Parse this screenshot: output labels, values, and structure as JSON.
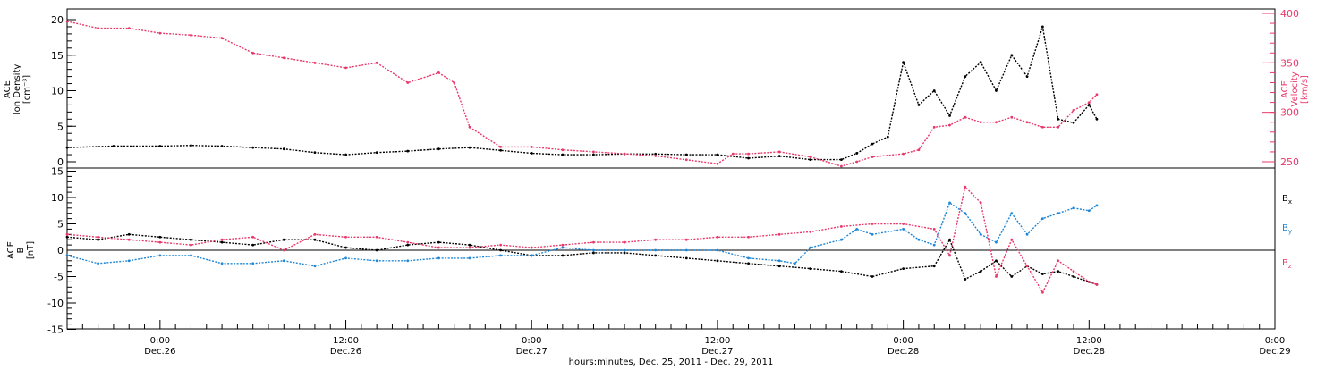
{
  "chart_data": [
    {
      "type": "line",
      "panel": "top",
      "ylabel_left_lines": [
        "ACE",
        "Ion Density",
        "[cm⁻³]"
      ],
      "ylabel_right_lines": [
        "ACE",
        "Velocity",
        "[km/s]"
      ],
      "x_range_hours": [
        -6,
        72
      ],
      "ylim_left": [
        0,
        20.5
      ],
      "left_ticks": [
        0,
        5,
        10,
        15,
        20
      ],
      "ylim_right": [
        215,
        410
      ],
      "right_ticks": [
        250,
        300,
        350,
        400
      ],
      "series": [
        {
          "name": "",
          "axis": "left",
          "color": "#000000",
          "x": [
            -6,
            -3,
            0,
            2,
            4,
            6,
            8,
            10,
            12,
            14,
            16,
            18,
            20,
            22,
            24,
            26,
            28,
            30,
            32,
            34,
            36,
            38,
            40,
            42,
            44,
            45,
            46,
            47,
            48,
            49,
            50,
            51,
            52,
            53,
            54,
            55,
            56,
            57,
            58,
            59,
            60,
            60.5
          ],
          "y": [
            2.0,
            2.2,
            2.2,
            2.3,
            2.2,
            2.0,
            1.8,
            1.3,
            1.0,
            1.3,
            1.5,
            1.8,
            2.0,
            1.6,
            1.2,
            1.0,
            1.0,
            1.1,
            1.1,
            1.0,
            1.0,
            0.5,
            0.8,
            0.3,
            0.3,
            1.2,
            2.5,
            3.5,
            14.0,
            8.0,
            10.0,
            6.5,
            12.0,
            14.0,
            10.0,
            15.0,
            12.0,
            19.0,
            6.0,
            5.5,
            8.0,
            6.0
          ]
        },
        {
          "name": "",
          "axis": "right",
          "color": "#e8386a",
          "x": [
            -6,
            -4,
            -2,
            0,
            2,
            4,
            6,
            8,
            10,
            12,
            14,
            16,
            18,
            19,
            20,
            22,
            24,
            26,
            28,
            30,
            32,
            34,
            36,
            37,
            38,
            40,
            42,
            44,
            45,
            46,
            48,
            49,
            50,
            51,
            52,
            53,
            54,
            55,
            56,
            57,
            58,
            59,
            60,
            60.5
          ],
          "y": [
            392,
            385,
            385,
            380,
            378,
            375,
            360,
            355,
            350,
            345,
            350,
            330,
            340,
            330,
            285,
            265,
            265,
            262,
            260,
            258,
            256,
            252,
            248,
            258,
            258,
            260,
            255,
            245,
            250,
            255,
            258,
            262,
            285,
            287,
            295,
            290,
            290,
            295,
            290,
            285,
            285,
            302,
            310,
            318
          ]
        }
      ]
    },
    {
      "type": "line",
      "panel": "bottom",
      "ylabel_left_lines": [
        "ACE",
        "B",
        "[nT]"
      ],
      "x_range_hours": [
        -6,
        72
      ],
      "ylim": [
        -15.5,
        15.5
      ],
      "ticks": [
        -15,
        -10,
        -5,
        0,
        5,
        10,
        15
      ],
      "zero_line": true,
      "x_tick_hours": [
        0,
        12,
        24,
        36,
        48,
        60,
        72
      ],
      "x_tick_labels_top": [
        "0:00",
        "12:00",
        "0:00",
        "12:00",
        "0:00",
        "12:00",
        "0:00"
      ],
      "x_tick_labels_bottom": [
        "Dec.26",
        "Dec.26",
        "Dec.27",
        "Dec.27",
        "Dec.28",
        "Dec.28",
        "Dec.29"
      ],
      "xlabel": "hours:minutes, Dec. 25, 2011 - Dec. 29, 2011",
      "series": [
        {
          "name": "Bx",
          "color": "#000000",
          "x": [
            -6,
            -4,
            -2,
            0,
            2,
            4,
            6,
            8,
            10,
            12,
            14,
            16,
            18,
            20,
            22,
            24,
            26,
            28,
            30,
            32,
            34,
            36,
            38,
            40,
            42,
            44,
            46,
            48,
            50,
            51,
            52,
            53,
            54,
            55,
            56,
            57,
            58,
            59,
            60,
            60.5
          ],
          "y": [
            2.5,
            2.0,
            3.0,
            2.5,
            2.0,
            1.5,
            1.0,
            2.0,
            2.0,
            0.5,
            0.0,
            1.0,
            1.5,
            1.0,
            0.0,
            -1.0,
            -1.0,
            -0.5,
            -0.5,
            -1.0,
            -1.5,
            -2.0,
            -2.5,
            -3.0,
            -3.5,
            -4.0,
            -5.0,
            -3.5,
            -3.0,
            2.0,
            -5.5,
            -4.0,
            -2.0,
            -5.0,
            -3.0,
            -4.5,
            -4.0,
            -5.0,
            -6.0,
            -6.5
          ]
        },
        {
          "name": "By",
          "color": "#1e86d6",
          "x": [
            -6,
            -4,
            -2,
            0,
            2,
            4,
            6,
            8,
            10,
            12,
            14,
            16,
            18,
            20,
            22,
            24,
            26,
            28,
            30,
            32,
            34,
            36,
            38,
            40,
            41,
            42,
            44,
            45,
            46,
            48,
            49,
            50,
            51,
            52,
            53,
            54,
            55,
            56,
            57,
            58,
            59,
            60,
            60.5
          ],
          "y": [
            -1.0,
            -2.5,
            -2.0,
            -1.0,
            -1.0,
            -2.5,
            -2.5,
            -2.0,
            -3.0,
            -1.5,
            -2.0,
            -2.0,
            -1.5,
            -1.5,
            -1.0,
            -1.0,
            0.5,
            0.0,
            0.0,
            0.0,
            0.0,
            0.0,
            -1.5,
            -2.0,
            -2.5,
            0.5,
            2.0,
            4.0,
            3.0,
            4.0,
            2.0,
            1.0,
            9.0,
            7.0,
            3.0,
            1.5,
            7.0,
            3.0,
            6.0,
            7.0,
            8.0,
            7.5,
            8.5
          ]
        },
        {
          "name": "Bz",
          "color": "#e8386a",
          "x": [
            -6,
            -4,
            -2,
            0,
            2,
            4,
            6,
            8,
            10,
            12,
            14,
            16,
            18,
            20,
            22,
            24,
            26,
            28,
            30,
            32,
            34,
            36,
            38,
            40,
            42,
            44,
            46,
            48,
            50,
            51,
            52,
            53,
            54,
            55,
            56,
            57,
            58,
            59,
            60,
            60.5
          ],
          "y": [
            3.0,
            2.5,
            2.0,
            1.5,
            1.0,
            2.0,
            2.5,
            0.0,
            3.0,
            2.5,
            2.5,
            1.5,
            0.5,
            0.5,
            1.0,
            0.5,
            1.0,
            1.5,
            1.5,
            2.0,
            2.0,
            2.5,
            2.5,
            3.0,
            3.5,
            4.5,
            5.0,
            5.0,
            4.0,
            -1.0,
            12.0,
            9.0,
            -5.0,
            2.0,
            -3.0,
            -8.0,
            -2.0,
            -4.0,
            -6.0,
            -6.5
          ]
        }
      ]
    }
  ],
  "legend": [
    {
      "base": "B",
      "sub": "x",
      "color": "#000000"
    },
    {
      "base": "B",
      "sub": "y",
      "color": "#1e86d6"
    },
    {
      "base": "B",
      "sub": "z",
      "color": "#e8386a"
    }
  ]
}
